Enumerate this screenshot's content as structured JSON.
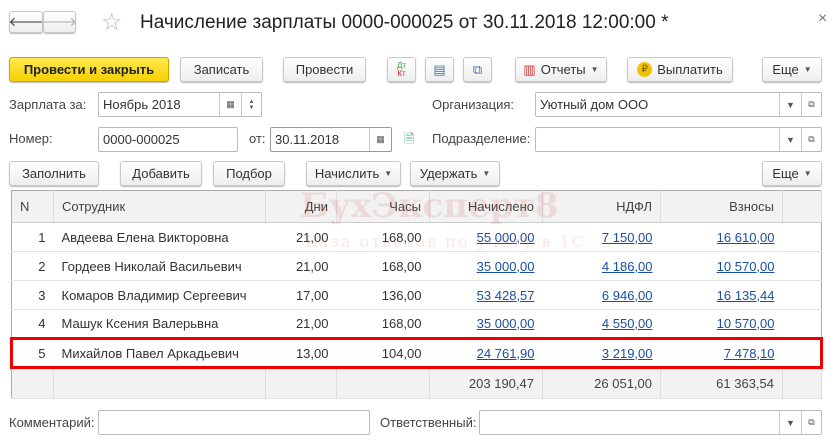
{
  "title": "Начисление зарплаты 0000-000025 от 30.11.2018 12:00:00 *",
  "close": "×",
  "toolbar": {
    "post_close": "Провести и закрыть",
    "save": "Записать",
    "post": "Провести",
    "dtkt_dt": "Дт",
    "dtkt_kt": "Кт",
    "reports": "Отчеты",
    "pay": "Выплатить",
    "more": "Еще"
  },
  "fields": {
    "salary_for_label": "Зарплата за:",
    "salary_for_value": "Ноябрь 2018",
    "org_label": "Организация:",
    "org_value": "Уютный дом ООО",
    "number_label": "Номер:",
    "number_value": "0000-000025",
    "date_label": "от:",
    "date_value": "30.11.2018",
    "dept_label": "Подразделение:",
    "dept_value": "",
    "comment_label": "Комментарий:",
    "comment_value": "",
    "responsible_label": "Ответственный:",
    "responsible_value": ""
  },
  "table_toolbar": {
    "fill": "Заполнить",
    "add": "Добавить",
    "pick": "Подбор",
    "accrue": "Начислить",
    "withhold": "Удержать",
    "more": "Еще"
  },
  "table": {
    "columns": [
      "N",
      "Сотрудник",
      "Дни",
      "Часы",
      "Начислено",
      "НДФЛ",
      "Взносы"
    ],
    "rows": [
      [
        "1",
        "Авдеева Елена Викторовна",
        "21,00",
        "168,00",
        "55 000,00",
        "7 150,00",
        "16 610,00"
      ],
      [
        "2",
        "Гордеев Николай Васильевич",
        "21,00",
        "168,00",
        "35 000,00",
        "4 186,00",
        "10 570,00"
      ],
      [
        "3",
        "Комаров Владимир Сергеевич",
        "17,00",
        "136,00",
        "53 428,57",
        "6 946,00",
        "16 135,44"
      ],
      [
        "4",
        "Машук Ксения Валерьвна",
        "21,00",
        "168,00",
        "35 000,00",
        "4 550,00",
        "10 570,00"
      ],
      [
        "5",
        "Михайлов Павел Аркадьевич",
        "13,00",
        "104,00",
        "24 761,90",
        "3 219,00",
        "7 478,10"
      ]
    ],
    "highlighted_row": 5,
    "totals": {
      "accrued": "203 190,47",
      "ndfl": "26 051,00",
      "contributions": "61 363,54"
    }
  },
  "watermark": {
    "brand": "БухЭксперт8",
    "tagline": "База ответов по учёту в 1С"
  },
  "colors": {
    "accent_yellow": "#f5d200",
    "link": "#1a4fa3",
    "highlight": "#e00000"
  }
}
